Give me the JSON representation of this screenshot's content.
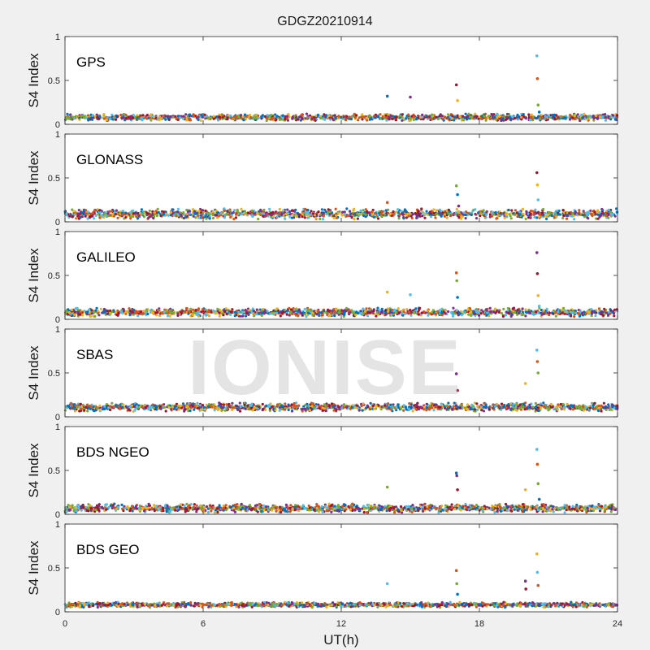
{
  "title": "GDGZ20210914",
  "watermark": "IONISE",
  "colors": [
    "#0072BD",
    "#D95319",
    "#EDB120",
    "#7E2F8E",
    "#77AC30",
    "#4DBEEE",
    "#A2142F"
  ],
  "chart_data": [
    {
      "type": "scatter",
      "panel_label": "GPS",
      "ylabel": "S4 Index",
      "xlim": [
        0,
        24
      ],
      "ylim": [
        0,
        1
      ],
      "yticks": [
        "0",
        "0.5",
        "1"
      ],
      "baseline": 0.08,
      "baseline_spread": 0.04,
      "series": [
        {
          "x": [
            14.0,
            15.0,
            17.0,
            17.05,
            20.5,
            20.52,
            20.55,
            20.6
          ],
          "y": [
            0.32,
            0.31,
            0.45,
            0.27,
            0.78,
            0.52,
            0.22,
            0.14
          ]
        }
      ]
    },
    {
      "type": "scatter",
      "panel_label": "GLONASS",
      "ylabel": "S4 Index",
      "xlim": [
        0,
        24
      ],
      "ylim": [
        0,
        1
      ],
      "yticks": [
        "0",
        "0.5",
        "1"
      ],
      "baseline": 0.09,
      "baseline_spread": 0.06,
      "series": [
        {
          "x": [
            14.0,
            17.0,
            17.05,
            17.1,
            20.5,
            20.52,
            20.55
          ],
          "y": [
            0.22,
            0.41,
            0.31,
            0.18,
            0.56,
            0.42,
            0.25
          ]
        }
      ]
    },
    {
      "type": "scatter",
      "panel_label": "GALILEO",
      "ylabel": "S4 Index",
      "xlim": [
        0,
        24
      ],
      "ylim": [
        0,
        1
      ],
      "yticks": [
        "0",
        "0.5",
        "1"
      ],
      "baseline": 0.08,
      "baseline_spread": 0.05,
      "series": [
        {
          "x": [
            14.0,
            15.0,
            17.0,
            17.02,
            17.05,
            20.5,
            20.52,
            20.55,
            20.6
          ],
          "y": [
            0.31,
            0.28,
            0.53,
            0.44,
            0.25,
            0.76,
            0.52,
            0.27,
            0.15
          ]
        }
      ]
    },
    {
      "type": "scatter",
      "panel_label": "SBAS",
      "ylabel": "S4 Index",
      "xlim": [
        0,
        24
      ],
      "ylim": [
        0,
        1
      ],
      "yticks": [
        "0",
        "0.5",
        "1"
      ],
      "baseline": 0.11,
      "baseline_spread": 0.05,
      "series": [
        {
          "x": [
            17.0,
            17.05,
            20.0,
            20.5,
            20.52,
            20.55
          ],
          "y": [
            0.49,
            0.3,
            0.38,
            0.76,
            0.63,
            0.5
          ]
        }
      ]
    },
    {
      "type": "scatter",
      "panel_label": "BDS NGEO",
      "ylabel": "S4 Index",
      "xlim": [
        0,
        24
      ],
      "ylim": [
        0,
        1
      ],
      "yticks": [
        "0",
        "0.5",
        "1"
      ],
      "baseline": 0.07,
      "baseline_spread": 0.05,
      "series": [
        {
          "x": [
            14.0,
            17.0,
            17.02,
            17.05,
            20.0,
            20.5,
            20.52,
            20.55,
            20.6
          ],
          "y": [
            0.31,
            0.47,
            0.44,
            0.28,
            0.28,
            0.74,
            0.57,
            0.35,
            0.17
          ]
        }
      ]
    },
    {
      "type": "scatter",
      "panel_label": "BDS GEO",
      "ylabel": "S4 Index",
      "xlim": [
        0,
        24
      ],
      "ylim": [
        0,
        1
      ],
      "yticks": [
        "0",
        "0.5",
        "1"
      ],
      "baseline": 0.08,
      "baseline_spread": 0.03,
      "series": [
        {
          "x": [
            14.0,
            17.0,
            17.02,
            17.05,
            20.0,
            20.02,
            20.5,
            20.52,
            20.55
          ],
          "y": [
            0.32,
            0.47,
            0.32,
            0.2,
            0.35,
            0.26,
            0.66,
            0.45,
            0.3
          ]
        }
      ]
    }
  ],
  "x_axis": {
    "label": "UT(h)",
    "ticks": [
      0,
      6,
      12,
      18,
      24
    ]
  }
}
